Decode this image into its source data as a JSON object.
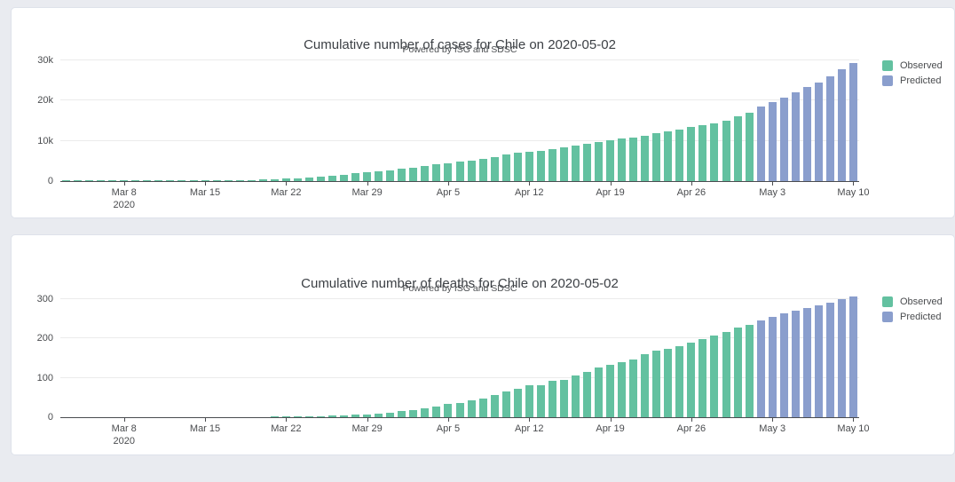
{
  "page": {
    "background": "#e9ebf0",
    "card_background": "#ffffff",
    "card_border": "#dee2ea",
    "observed_color": "#63c1a0",
    "predicted_color": "#8a9ecd"
  },
  "chart_data": [
    {
      "type": "bar",
      "title": "Cumulative number of cases for Chile on 2020-05-02",
      "subtitle": "Powered by ISG and SDSC",
      "grid": true,
      "legend_position": "right-top",
      "x_unit": "day",
      "categories": [
        "2020-03-03",
        "2020-03-04",
        "2020-03-05",
        "2020-03-06",
        "2020-03-07",
        "2020-03-08",
        "2020-03-09",
        "2020-03-10",
        "2020-03-11",
        "2020-03-12",
        "2020-03-13",
        "2020-03-14",
        "2020-03-15",
        "2020-03-16",
        "2020-03-17",
        "2020-03-18",
        "2020-03-19",
        "2020-03-20",
        "2020-03-21",
        "2020-03-22",
        "2020-03-23",
        "2020-03-24",
        "2020-03-25",
        "2020-03-26",
        "2020-03-27",
        "2020-03-28",
        "2020-03-29",
        "2020-03-30",
        "2020-03-31",
        "2020-04-01",
        "2020-04-02",
        "2020-04-03",
        "2020-04-04",
        "2020-04-05",
        "2020-04-06",
        "2020-04-07",
        "2020-04-08",
        "2020-04-09",
        "2020-04-10",
        "2020-04-11",
        "2020-04-12",
        "2020-04-13",
        "2020-04-14",
        "2020-04-15",
        "2020-04-16",
        "2020-04-17",
        "2020-04-18",
        "2020-04-19",
        "2020-04-20",
        "2020-04-21",
        "2020-04-22",
        "2020-04-23",
        "2020-04-24",
        "2020-04-25",
        "2020-04-26",
        "2020-04-27",
        "2020-04-28",
        "2020-04-29",
        "2020-04-30",
        "2020-05-01",
        "2020-05-02",
        "2020-05-03",
        "2020-05-04",
        "2020-05-05",
        "2020-05-06",
        "2020-05-07",
        "2020-05-08",
        "2020-05-09",
        "2020-05-10"
      ],
      "series": [
        {
          "name": "Observed",
          "color": "#63c1a0",
          "start_index": 0,
          "values": [
            1,
            1,
            4,
            4,
            8,
            8,
            13,
            17,
            23,
            23,
            43,
            61,
            74,
            155,
            201,
            238,
            238,
            434,
            537,
            632,
            746,
            922,
            1142,
            1306,
            1610,
            1909,
            2139,
            2449,
            2738,
            3031,
            3404,
            3737,
            4161,
            4471,
            4815,
            5116,
            5546,
            5972,
            6501,
            6927,
            7213,
            7525,
            7917,
            8273,
            8807,
            9252,
            9730,
            10088,
            10507,
            10832,
            11296,
            11812,
            12306,
            12858,
            13331,
            13813,
            14365,
            14885,
            16023,
            17008
          ]
        },
        {
          "name": "Predicted",
          "color": "#8a9ecd",
          "start_index": 60,
          "values": [
            18500,
            19600,
            20700,
            21900,
            23200,
            24500,
            26000,
            27600,
            29300
          ]
        }
      ],
      "ylim": [
        0,
        31000
      ],
      "yticks": [
        {
          "value": 0,
          "label": "0"
        },
        {
          "value": 10000,
          "label": "10k"
        },
        {
          "value": 20000,
          "label": "20k"
        },
        {
          "value": 30000,
          "label": "30k"
        }
      ],
      "xticks": [
        {
          "index": 5,
          "label": "Mar 8",
          "sublabel": "2020"
        },
        {
          "index": 12,
          "label": "Mar 15"
        },
        {
          "index": 19,
          "label": "Mar 22"
        },
        {
          "index": 26,
          "label": "Mar 29"
        },
        {
          "index": 33,
          "label": "Apr 5"
        },
        {
          "index": 40,
          "label": "Apr 12"
        },
        {
          "index": 47,
          "label": "Apr 19"
        },
        {
          "index": 54,
          "label": "Apr 26"
        },
        {
          "index": 61,
          "label": "May 3"
        },
        {
          "index": 68,
          "label": "May 10"
        }
      ]
    },
    {
      "type": "bar",
      "title": "Cumulative number of deaths for Chile on 2020-05-02",
      "subtitle": "Powered by ISG and SDSC",
      "grid": true,
      "legend_position": "right-top",
      "x_unit": "day",
      "categories": [
        "2020-03-03",
        "2020-03-04",
        "2020-03-05",
        "2020-03-06",
        "2020-03-07",
        "2020-03-08",
        "2020-03-09",
        "2020-03-10",
        "2020-03-11",
        "2020-03-12",
        "2020-03-13",
        "2020-03-14",
        "2020-03-15",
        "2020-03-16",
        "2020-03-17",
        "2020-03-18",
        "2020-03-19",
        "2020-03-20",
        "2020-03-21",
        "2020-03-22",
        "2020-03-23",
        "2020-03-24",
        "2020-03-25",
        "2020-03-26",
        "2020-03-27",
        "2020-03-28",
        "2020-03-29",
        "2020-03-30",
        "2020-03-31",
        "2020-04-01",
        "2020-04-02",
        "2020-04-03",
        "2020-04-04",
        "2020-04-05",
        "2020-04-06",
        "2020-04-07",
        "2020-04-08",
        "2020-04-09",
        "2020-04-10",
        "2020-04-11",
        "2020-04-12",
        "2020-04-13",
        "2020-04-14",
        "2020-04-15",
        "2020-04-16",
        "2020-04-17",
        "2020-04-18",
        "2020-04-19",
        "2020-04-20",
        "2020-04-21",
        "2020-04-22",
        "2020-04-23",
        "2020-04-24",
        "2020-04-25",
        "2020-04-26",
        "2020-04-27",
        "2020-04-28",
        "2020-04-29",
        "2020-04-30",
        "2020-05-01",
        "2020-05-02",
        "2020-05-03",
        "2020-05-04",
        "2020-05-05",
        "2020-05-06",
        "2020-05-07",
        "2020-05-08",
        "2020-05-09",
        "2020-05-10"
      ],
      "series": [
        {
          "name": "Observed",
          "color": "#63c1a0",
          "start_index": 0,
          "values": [
            0,
            0,
            0,
            0,
            0,
            0,
            0,
            0,
            0,
            0,
            0,
            0,
            0,
            0,
            0,
            0,
            0,
            0,
            1,
            1,
            2,
            2,
            3,
            4,
            5,
            6,
            7,
            8,
            12,
            16,
            18,
            22,
            27,
            34,
            37,
            43,
            48,
            57,
            65,
            73,
            80,
            82,
            92,
            94,
            105,
            116,
            126,
            133,
            139,
            147,
            160,
            168,
            174,
            181,
            189,
            198,
            207,
            216,
            227,
            234
          ]
        },
        {
          "name": "Predicted",
          "color": "#8a9ecd",
          "start_index": 60,
          "values": [
            246,
            255,
            263,
            270,
            277,
            284,
            291,
            299,
            307
          ]
        }
      ],
      "ylim": [
        0,
        320
      ],
      "yticks": [
        {
          "value": 0,
          "label": "0"
        },
        {
          "value": 100,
          "label": "100"
        },
        {
          "value": 200,
          "label": "200"
        },
        {
          "value": 300,
          "label": "300"
        }
      ],
      "xticks": [
        {
          "index": 5,
          "label": "Mar 8",
          "sublabel": "2020"
        },
        {
          "index": 12,
          "label": "Mar 15"
        },
        {
          "index": 19,
          "label": "Mar 22"
        },
        {
          "index": 26,
          "label": "Mar 29"
        },
        {
          "index": 33,
          "label": "Apr 5"
        },
        {
          "index": 40,
          "label": "Apr 12"
        },
        {
          "index": 47,
          "label": "Apr 19"
        },
        {
          "index": 54,
          "label": "Apr 26"
        },
        {
          "index": 61,
          "label": "May 3"
        },
        {
          "index": 68,
          "label": "May 10"
        }
      ]
    }
  ]
}
